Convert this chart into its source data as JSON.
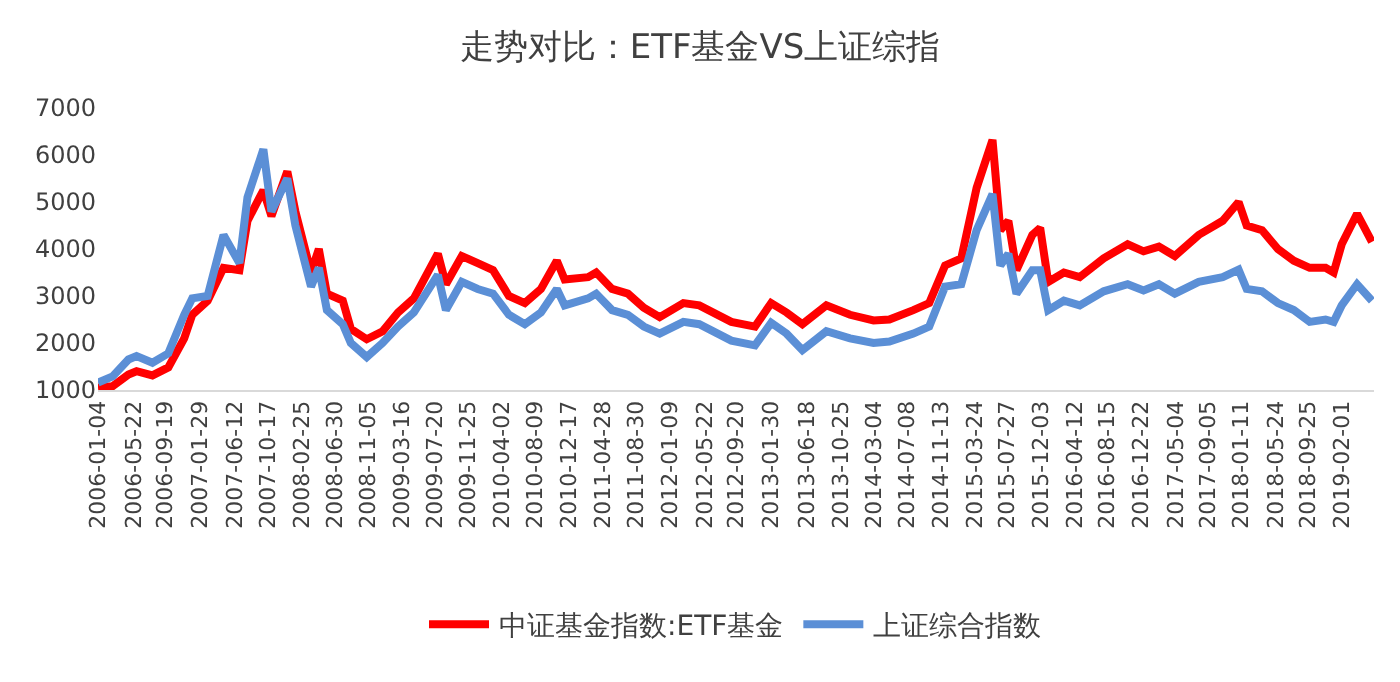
{
  "chart_data": {
    "type": "line",
    "title": "走势对比：ETF基金VS上证综指",
    "x": [
      "2006-01-04",
      "2006-03",
      "2006-05",
      "2006-06",
      "2006-08",
      "2006-10",
      "2006-12",
      "2007-01",
      "2007-03",
      "2007-05",
      "2007-07",
      "2007-08",
      "2007-10",
      "2007-11",
      "2008-01",
      "2008-02",
      "2008-04",
      "2008-05",
      "2008-06",
      "2008-08",
      "2008-09",
      "2008-11",
      "2009-01",
      "2009-03",
      "2009-05",
      "2009-08",
      "2009-09",
      "2009-11",
      "2010-01",
      "2010-03",
      "2010-05",
      "2010-07",
      "2010-09",
      "2010-11",
      "2010-12",
      "2011-03",
      "2011-04",
      "2011-06",
      "2011-08",
      "2011-10",
      "2011-12",
      "2012-03",
      "2012-05",
      "2012-09",
      "2012-12",
      "2013-02",
      "2013-04",
      "2013-06",
      "2013-09",
      "2013-12",
      "2014-03",
      "2014-05",
      "2014-08",
      "2014-10",
      "2014-12",
      "2015-02",
      "2015-04",
      "2015-06",
      "2015-07",
      "2015-08",
      "2015-09",
      "2015-11",
      "2015-12",
      "2016-01",
      "2016-03",
      "2016-05",
      "2016-08",
      "2016-11",
      "2017-01",
      "2017-03",
      "2017-05",
      "2017-08",
      "2017-11",
      "2018-01",
      "2018-02",
      "2018-04",
      "2018-06",
      "2018-08",
      "2018-10",
      "2018-12",
      "2019-01",
      "2019-02",
      "2019-04",
      "2019-05-28"
    ],
    "series": [
      {
        "name": "中证基金指数:ETF基金",
        "color": "#ff0000",
        "values": [
          1050,
          1080,
          1330,
          1400,
          1310,
          1480,
          2100,
          2600,
          2900,
          3600,
          3550,
          4600,
          5250,
          4700,
          5650,
          4800,
          3500,
          4000,
          3050,
          2900,
          2300,
          2080,
          2250,
          2650,
          2950,
          3900,
          3250,
          3850,
          3700,
          3550,
          3000,
          2850,
          3150,
          3750,
          3350,
          3400,
          3500,
          3150,
          3050,
          2750,
          2550,
          2850,
          2800,
          2450,
          2350,
          2850,
          2650,
          2400,
          2800,
          2600,
          2480,
          2500,
          2700,
          2850,
          3650,
          3800,
          5300,
          6320,
          4400,
          4600,
          3550,
          4300,
          4450,
          3300,
          3500,
          3400,
          3800,
          4100,
          3950,
          4050,
          3850,
          4300,
          4600,
          5000,
          4500,
          4400,
          4000,
          3750,
          3600,
          3600,
          3500,
          4100,
          4750,
          4150
        ]
      },
      {
        "name": "上证综合指数",
        "color": "#5b8fd6",
        "values": [
          1160,
          1290,
          1650,
          1720,
          1580,
          1780,
          2600,
          2950,
          3000,
          4300,
          3700,
          5100,
          6120,
          4800,
          5500,
          4500,
          3200,
          3600,
          2700,
          2400,
          2000,
          1700,
          2000,
          2350,
          2650,
          3450,
          2700,
          3300,
          3150,
          3050,
          2600,
          2400,
          2650,
          3150,
          2800,
          2950,
          3050,
          2700,
          2600,
          2350,
          2200,
          2450,
          2400,
          2050,
          1950,
          2430,
          2200,
          1850,
          2250,
          2100,
          2000,
          2030,
          2200,
          2350,
          3200,
          3250,
          4400,
          5170,
          3650,
          3900,
          3050,
          3550,
          3550,
          2700,
          2900,
          2800,
          3100,
          3250,
          3120,
          3250,
          3050,
          3300,
          3400,
          3560,
          3150,
          3100,
          2850,
          2700,
          2450,
          2500,
          2450,
          2800,
          3250,
          2900
        ]
      }
    ],
    "xlim": [
      "2006-01-04",
      "2019-06-05"
    ],
    "xticks": [
      "2006-01-04",
      "2006-05-22",
      "2006-09-19",
      "2007-01-29",
      "2007-06-12",
      "2007-10-17",
      "2008-02-25",
      "2008-06-30",
      "2008-11-05",
      "2009-03-16",
      "2009-07-20",
      "2009-11-25",
      "2010-04-02",
      "2010-08-09",
      "2010-12-17",
      "2011-04-28",
      "2011-08-30",
      "2012-01-09",
      "2012-05-22",
      "2012-09-20",
      "2013-01-30",
      "2013-06-18",
      "2013-10-25",
      "2014-03-04",
      "2014-07-08",
      "2014-11-13",
      "2015-03-24",
      "2015-07-27",
      "2015-12-03",
      "2016-04-12",
      "2016-08-15",
      "2016-12-22",
      "2017-05-04",
      "2017-09-05",
      "2018-01-11",
      "2018-05-24",
      "2018-09-25",
      "2019-02-01"
    ],
    "ylim": [
      1000,
      7000
    ],
    "yticks": [
      1000,
      2000,
      3000,
      4000,
      5000,
      6000,
      7000
    ],
    "grid": false,
    "legend": "bottom",
    "line_style": "solid",
    "marker": "none"
  }
}
